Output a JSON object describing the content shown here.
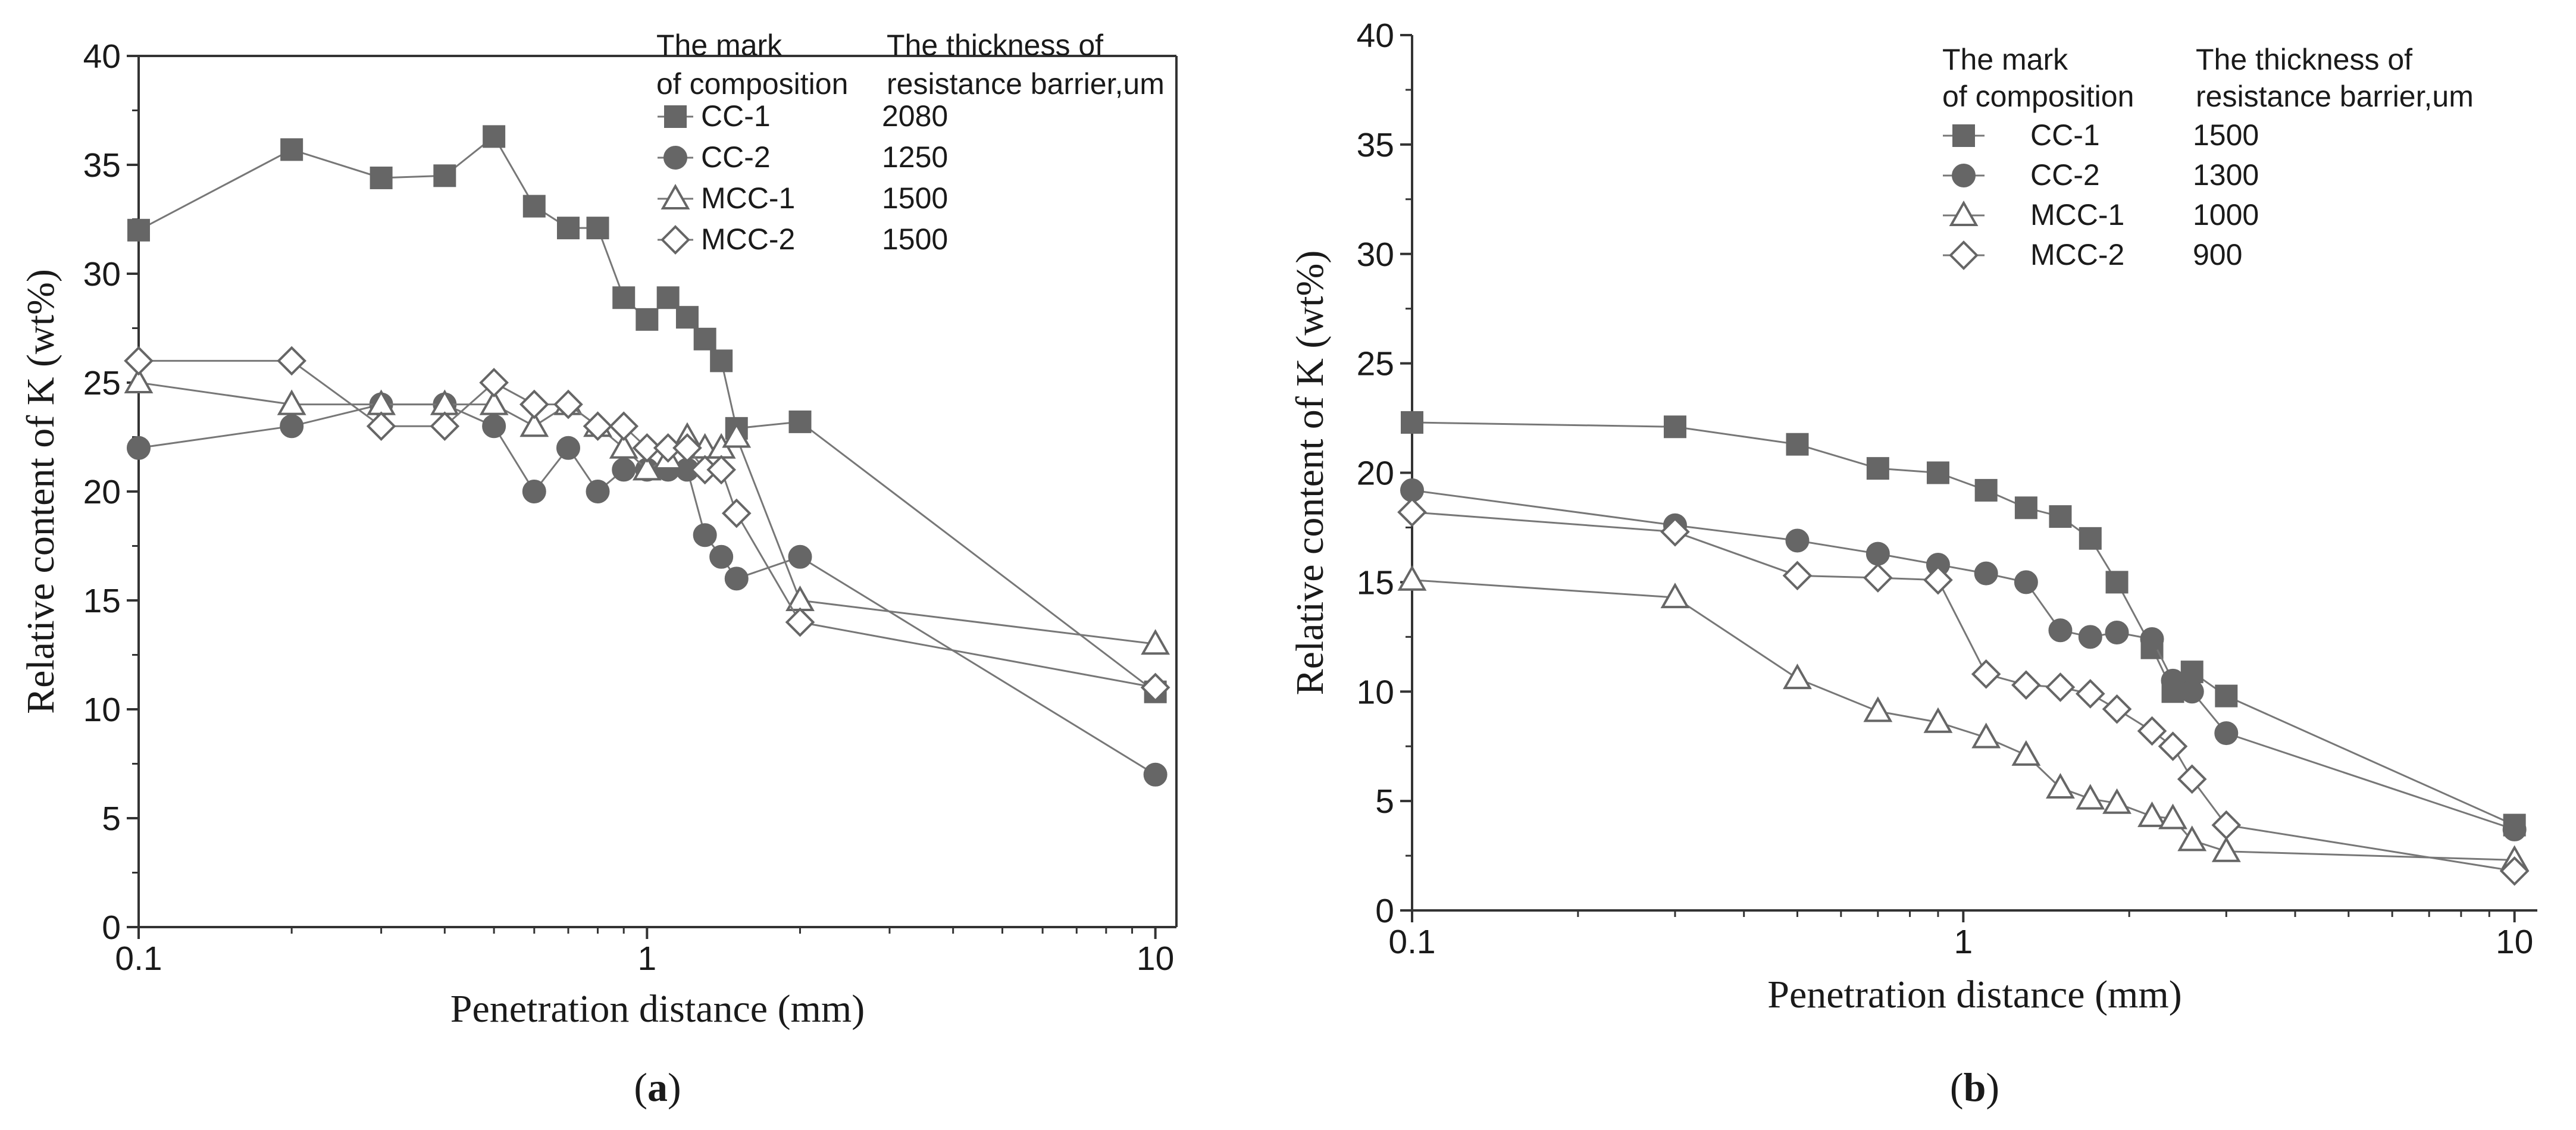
{
  "chart_data": [
    {
      "type": "line",
      "panel_label": "a",
      "xscale": "log",
      "xlabel": "Penetration distance (mm)",
      "ylabel": "Relative content of K (wt%)",
      "xlim": [
        0.1,
        11
      ],
      "ylim": [
        0,
        40
      ],
      "xticks": [
        0.1,
        1,
        10
      ],
      "xtick_labels": [
        "0.1",
        "1",
        "10"
      ],
      "yticks": [
        0,
        5,
        10,
        15,
        20,
        25,
        30,
        35,
        40
      ],
      "ytick_labels": [
        "0",
        "5",
        "10",
        "15",
        "20",
        "25",
        "30",
        "35",
        "40"
      ],
      "legend": {
        "header_col1": [
          "The mark",
          "of composition"
        ],
        "header_col2": [
          "The thickness of",
          "resistance barrier,um"
        ],
        "placement": "top-right"
      },
      "series": [
        {
          "name": "CC-1",
          "thickness": "2080",
          "marker": "square-filled",
          "x": [
            0.1,
            0.2,
            0.3,
            0.4,
            0.5,
            0.6,
            0.7,
            0.8,
            0.9,
            1.0,
            1.1,
            1.2,
            1.3,
            1.4,
            1.5,
            2,
            10
          ],
          "y": [
            32,
            35.7,
            34.4,
            34.5,
            36.3,
            33.1,
            32.1,
            32.1,
            28.9,
            27.9,
            28.9,
            28,
            27,
            26,
            22.9,
            23.2,
            10.8
          ]
        },
        {
          "name": "CC-2",
          "thickness": "1250",
          "marker": "circle-filled",
          "x": [
            0.1,
            0.2,
            0.3,
            0.4,
            0.5,
            0.6,
            0.7,
            0.8,
            0.9,
            1.0,
            1.1,
            1.2,
            1.3,
            1.4,
            1.5,
            2,
            10
          ],
          "y": [
            22,
            23,
            24,
            24,
            23,
            20,
            22,
            20,
            21,
            21,
            21,
            21,
            18,
            17,
            16,
            17,
            7
          ]
        },
        {
          "name": "MCC-1",
          "thickness": "1500",
          "marker": "triangle-open",
          "x": [
            0.1,
            0.2,
            0.3,
            0.4,
            0.5,
            0.6,
            0.7,
            0.8,
            0.9,
            1.0,
            1.1,
            1.2,
            1.3,
            1.4,
            1.5,
            2,
            10
          ],
          "y": [
            25,
            24,
            24,
            24,
            24,
            23,
            24,
            23,
            22,
            21,
            21.5,
            22.5,
            22,
            22,
            22.5,
            15,
            13
          ]
        },
        {
          "name": "MCC-2",
          "thickness": "1500",
          "marker": "diamond-open",
          "x": [
            0.1,
            0.2,
            0.3,
            0.4,
            0.5,
            0.6,
            0.7,
            0.8,
            0.9,
            1.0,
            1.1,
            1.2,
            1.3,
            1.4,
            1.5,
            2,
            10
          ],
          "y": [
            26,
            26,
            23,
            23,
            25,
            24,
            24,
            23,
            23,
            22,
            22,
            22,
            21,
            21,
            19,
            14,
            11
          ]
        }
      ]
    },
    {
      "type": "line",
      "panel_label": "b",
      "xscale": "log",
      "xlabel": "Penetration distance (mm)",
      "ylabel": "Relative content of K (wt%)",
      "xlim": [
        0.1,
        11
      ],
      "ylim": [
        0,
        40
      ],
      "xticks": [
        0.1,
        1,
        10
      ],
      "xtick_labels": [
        "0.1",
        "1",
        "10"
      ],
      "yticks": [
        0,
        5,
        10,
        15,
        20,
        25,
        30,
        35,
        40
      ],
      "ytick_labels": [
        "0",
        "5",
        "10",
        "15",
        "20",
        "25",
        "30",
        "35",
        "40"
      ],
      "legend": {
        "header_col1": [
          "The mark",
          "of composition"
        ],
        "header_col2": [
          "The thickness of",
          "resistance barrier,um"
        ],
        "placement": "top-right"
      },
      "series": [
        {
          "name": "CC-1",
          "thickness": "1500",
          "marker": "square-filled",
          "x": [
            0.1,
            0.3,
            0.5,
            0.7,
            0.9,
            1.1,
            1.3,
            1.5,
            1.7,
            1.9,
            2.2,
            2.4,
            2.6,
            3,
            10
          ],
          "y": [
            22.3,
            22.1,
            21.3,
            20.2,
            20,
            19.2,
            18.4,
            18,
            17,
            15,
            12,
            10,
            10.9,
            9.8,
            3.9
          ]
        },
        {
          "name": "CC-2",
          "thickness": "1300",
          "marker": "circle-filled",
          "x": [
            0.1,
            0.3,
            0.5,
            0.7,
            0.9,
            1.1,
            1.3,
            1.5,
            1.7,
            1.9,
            2.2,
            2.4,
            2.6,
            3,
            10
          ],
          "y": [
            19.2,
            17.6,
            16.9,
            16.3,
            15.8,
            15.4,
            15,
            12.8,
            12.5,
            12.7,
            12.4,
            10.5,
            10,
            8.1,
            3.7
          ]
        },
        {
          "name": "MCC-1",
          "thickness": "1000",
          "marker": "triangle-open",
          "x": [
            0.1,
            0.3,
            0.5,
            0.7,
            0.9,
            1.1,
            1.3,
            1.5,
            1.7,
            1.9,
            2.2,
            2.4,
            2.6,
            3,
            10
          ],
          "y": [
            15.1,
            14.3,
            10.6,
            9.1,
            8.6,
            7.9,
            7.1,
            5.6,
            5.1,
            4.9,
            4.3,
            4.2,
            3.2,
            2.7,
            2.3
          ]
        },
        {
          "name": "MCC-2",
          "thickness": "900",
          "marker": "diamond-open",
          "x": [
            0.1,
            0.3,
            0.5,
            0.7,
            0.9,
            1.1,
            1.3,
            1.5,
            1.7,
            1.9,
            2.2,
            2.4,
            2.6,
            3,
            10
          ],
          "y": [
            18.2,
            17.3,
            15.3,
            15.2,
            15.1,
            10.8,
            10.3,
            10.2,
            9.9,
            9.2,
            8.2,
            7.5,
            6,
            3.9,
            1.8
          ]
        }
      ]
    }
  ]
}
